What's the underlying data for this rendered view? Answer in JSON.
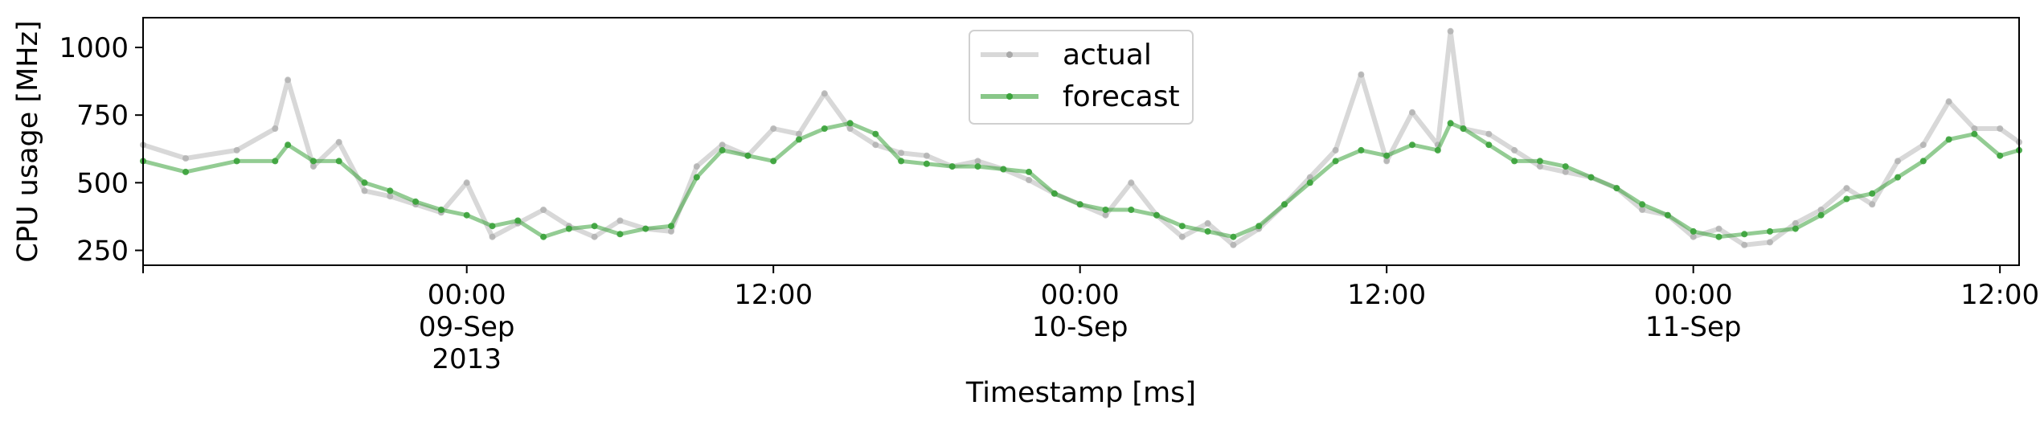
{
  "chart_data": {
    "type": "line",
    "xlabel": "Timestamp [ms]",
    "ylabel": "CPU usage [MHz]",
    "x_range": [
      "2013-09-08 11:20",
      "2013-09-11 12:45"
    ],
    "ylim": [
      195,
      1110
    ],
    "yticks": [
      250,
      500,
      750,
      1000
    ],
    "xticks": [
      {
        "at": "2013-09-09 00:00",
        "lines": [
          "00:00",
          "09-Sep",
          "2013"
        ]
      },
      {
        "at": "2013-09-09 12:00",
        "lines": [
          "12:00"
        ]
      },
      {
        "at": "2013-09-10 00:00",
        "lines": [
          "00:00",
          "10-Sep"
        ]
      },
      {
        "at": "2013-09-10 12:00",
        "lines": [
          "12:00"
        ]
      },
      {
        "at": "2013-09-11 00:00",
        "lines": [
          "00:00",
          "11-Sep"
        ]
      },
      {
        "at": "2013-09-11 12:00",
        "lines": [
          "12:00"
        ]
      }
    ],
    "legend": {
      "position": "top-center",
      "entries": [
        "actual",
        "forecast"
      ]
    },
    "grid": false,
    "series": [
      {
        "name": "actual",
        "color": "#a9a9a9",
        "points": [
          [
            "2013-09-08 11:20",
            640
          ],
          [
            "2013-09-08 13:00",
            590
          ],
          [
            "2013-09-08 15:00",
            620
          ],
          [
            "2013-09-08 16:30",
            700
          ],
          [
            "2013-09-08 17:00",
            880
          ],
          [
            "2013-09-08 18:00",
            560
          ],
          [
            "2013-09-08 19:00",
            650
          ],
          [
            "2013-09-08 20:00",
            470
          ],
          [
            "2013-09-08 21:00",
            450
          ],
          [
            "2013-09-08 22:00",
            420
          ],
          [
            "2013-09-08 23:00",
            390
          ],
          [
            "2013-09-09 00:00",
            500
          ],
          [
            "2013-09-09 01:00",
            300
          ],
          [
            "2013-09-09 02:00",
            350
          ],
          [
            "2013-09-09 03:00",
            400
          ],
          [
            "2013-09-09 04:00",
            340
          ],
          [
            "2013-09-09 05:00",
            300
          ],
          [
            "2013-09-09 06:00",
            360
          ],
          [
            "2013-09-09 07:00",
            330
          ],
          [
            "2013-09-09 08:00",
            320
          ],
          [
            "2013-09-09 09:00",
            560
          ],
          [
            "2013-09-09 10:00",
            640
          ],
          [
            "2013-09-09 11:00",
            600
          ],
          [
            "2013-09-09 12:00",
            700
          ],
          [
            "2013-09-09 13:00",
            680
          ],
          [
            "2013-09-09 14:00",
            830
          ],
          [
            "2013-09-09 15:00",
            700
          ],
          [
            "2013-09-09 16:00",
            640
          ],
          [
            "2013-09-09 17:00",
            610
          ],
          [
            "2013-09-09 18:00",
            600
          ],
          [
            "2013-09-09 19:00",
            560
          ],
          [
            "2013-09-09 20:00",
            580
          ],
          [
            "2013-09-09 21:00",
            550
          ],
          [
            "2013-09-09 22:00",
            510
          ],
          [
            "2013-09-09 23:00",
            460
          ],
          [
            "2013-09-10 00:00",
            420
          ],
          [
            "2013-09-10 01:00",
            380
          ],
          [
            "2013-09-10 02:00",
            500
          ],
          [
            "2013-09-10 03:00",
            380
          ],
          [
            "2013-09-10 04:00",
            300
          ],
          [
            "2013-09-10 05:00",
            350
          ],
          [
            "2013-09-10 06:00",
            270
          ],
          [
            "2013-09-10 07:00",
            330
          ],
          [
            "2013-09-10 08:00",
            420
          ],
          [
            "2013-09-10 09:00",
            520
          ],
          [
            "2013-09-10 10:00",
            620
          ],
          [
            "2013-09-10 11:00",
            900
          ],
          [
            "2013-09-10 12:00",
            580
          ],
          [
            "2013-09-10 13:00",
            760
          ],
          [
            "2013-09-10 14:00",
            640
          ],
          [
            "2013-09-10 14:30",
            1060
          ],
          [
            "2013-09-10 15:00",
            700
          ],
          [
            "2013-09-10 16:00",
            680
          ],
          [
            "2013-09-10 17:00",
            620
          ],
          [
            "2013-09-10 18:00",
            560
          ],
          [
            "2013-09-10 19:00",
            540
          ],
          [
            "2013-09-10 20:00",
            520
          ],
          [
            "2013-09-10 21:00",
            480
          ],
          [
            "2013-09-10 22:00",
            400
          ],
          [
            "2013-09-10 23:00",
            380
          ],
          [
            "2013-09-11 00:00",
            300
          ],
          [
            "2013-09-11 01:00",
            330
          ],
          [
            "2013-09-11 02:00",
            270
          ],
          [
            "2013-09-11 03:00",
            280
          ],
          [
            "2013-09-11 04:00",
            350
          ],
          [
            "2013-09-11 05:00",
            400
          ],
          [
            "2013-09-11 06:00",
            480
          ],
          [
            "2013-09-11 07:00",
            420
          ],
          [
            "2013-09-11 08:00",
            580
          ],
          [
            "2013-09-11 09:00",
            640
          ],
          [
            "2013-09-11 10:00",
            800
          ],
          [
            "2013-09-11 11:00",
            700
          ],
          [
            "2013-09-11 12:00",
            700
          ],
          [
            "2013-09-11 12:45",
            650
          ]
        ]
      },
      {
        "name": "forecast",
        "color": "#3aa23a",
        "points": [
          [
            "2013-09-08 11:20",
            580
          ],
          [
            "2013-09-08 13:00",
            540
          ],
          [
            "2013-09-08 15:00",
            580
          ],
          [
            "2013-09-08 16:30",
            580
          ],
          [
            "2013-09-08 17:00",
            640
          ],
          [
            "2013-09-08 18:00",
            580
          ],
          [
            "2013-09-08 19:00",
            580
          ],
          [
            "2013-09-08 20:00",
            500
          ],
          [
            "2013-09-08 21:00",
            470
          ],
          [
            "2013-09-08 22:00",
            430
          ],
          [
            "2013-09-08 23:00",
            400
          ],
          [
            "2013-09-09 00:00",
            380
          ],
          [
            "2013-09-09 01:00",
            340
          ],
          [
            "2013-09-09 02:00",
            360
          ],
          [
            "2013-09-09 03:00",
            300
          ],
          [
            "2013-09-09 04:00",
            330
          ],
          [
            "2013-09-09 05:00",
            340
          ],
          [
            "2013-09-09 06:00",
            310
          ],
          [
            "2013-09-09 07:00",
            330
          ],
          [
            "2013-09-09 08:00",
            340
          ],
          [
            "2013-09-09 09:00",
            520
          ],
          [
            "2013-09-09 10:00",
            620
          ],
          [
            "2013-09-09 11:00",
            600
          ],
          [
            "2013-09-09 12:00",
            580
          ],
          [
            "2013-09-09 13:00",
            660
          ],
          [
            "2013-09-09 14:00",
            700
          ],
          [
            "2013-09-09 15:00",
            720
          ],
          [
            "2013-09-09 16:00",
            680
          ],
          [
            "2013-09-09 17:00",
            580
          ],
          [
            "2013-09-09 18:00",
            570
          ],
          [
            "2013-09-09 19:00",
            560
          ],
          [
            "2013-09-09 20:00",
            560
          ],
          [
            "2013-09-09 21:00",
            550
          ],
          [
            "2013-09-09 22:00",
            540
          ],
          [
            "2013-09-09 23:00",
            460
          ],
          [
            "2013-09-10 00:00",
            420
          ],
          [
            "2013-09-10 01:00",
            400
          ],
          [
            "2013-09-10 02:00",
            400
          ],
          [
            "2013-09-10 03:00",
            380
          ],
          [
            "2013-09-10 04:00",
            340
          ],
          [
            "2013-09-10 05:00",
            320
          ],
          [
            "2013-09-10 06:00",
            300
          ],
          [
            "2013-09-10 07:00",
            340
          ],
          [
            "2013-09-10 08:00",
            420
          ],
          [
            "2013-09-10 09:00",
            500
          ],
          [
            "2013-09-10 10:00",
            580
          ],
          [
            "2013-09-10 11:00",
            620
          ],
          [
            "2013-09-10 12:00",
            600
          ],
          [
            "2013-09-10 13:00",
            640
          ],
          [
            "2013-09-10 14:00",
            620
          ],
          [
            "2013-09-10 14:30",
            720
          ],
          [
            "2013-09-10 15:00",
            700
          ],
          [
            "2013-09-10 16:00",
            640
          ],
          [
            "2013-09-10 17:00",
            580
          ],
          [
            "2013-09-10 18:00",
            580
          ],
          [
            "2013-09-10 19:00",
            560
          ],
          [
            "2013-09-10 20:00",
            520
          ],
          [
            "2013-09-10 21:00",
            480
          ],
          [
            "2013-09-10 22:00",
            420
          ],
          [
            "2013-09-10 23:00",
            380
          ],
          [
            "2013-09-11 00:00",
            320
          ],
          [
            "2013-09-11 01:00",
            300
          ],
          [
            "2013-09-11 02:00",
            310
          ],
          [
            "2013-09-11 03:00",
            320
          ],
          [
            "2013-09-11 04:00",
            330
          ],
          [
            "2013-09-11 05:00",
            380
          ],
          [
            "2013-09-11 06:00",
            440
          ],
          [
            "2013-09-11 07:00",
            460
          ],
          [
            "2013-09-11 08:00",
            520
          ],
          [
            "2013-09-11 09:00",
            580
          ],
          [
            "2013-09-11 10:00",
            660
          ],
          [
            "2013-09-11 11:00",
            680
          ],
          [
            "2013-09-11 12:00",
            600
          ],
          [
            "2013-09-11 12:45",
            620
          ]
        ]
      }
    ]
  }
}
